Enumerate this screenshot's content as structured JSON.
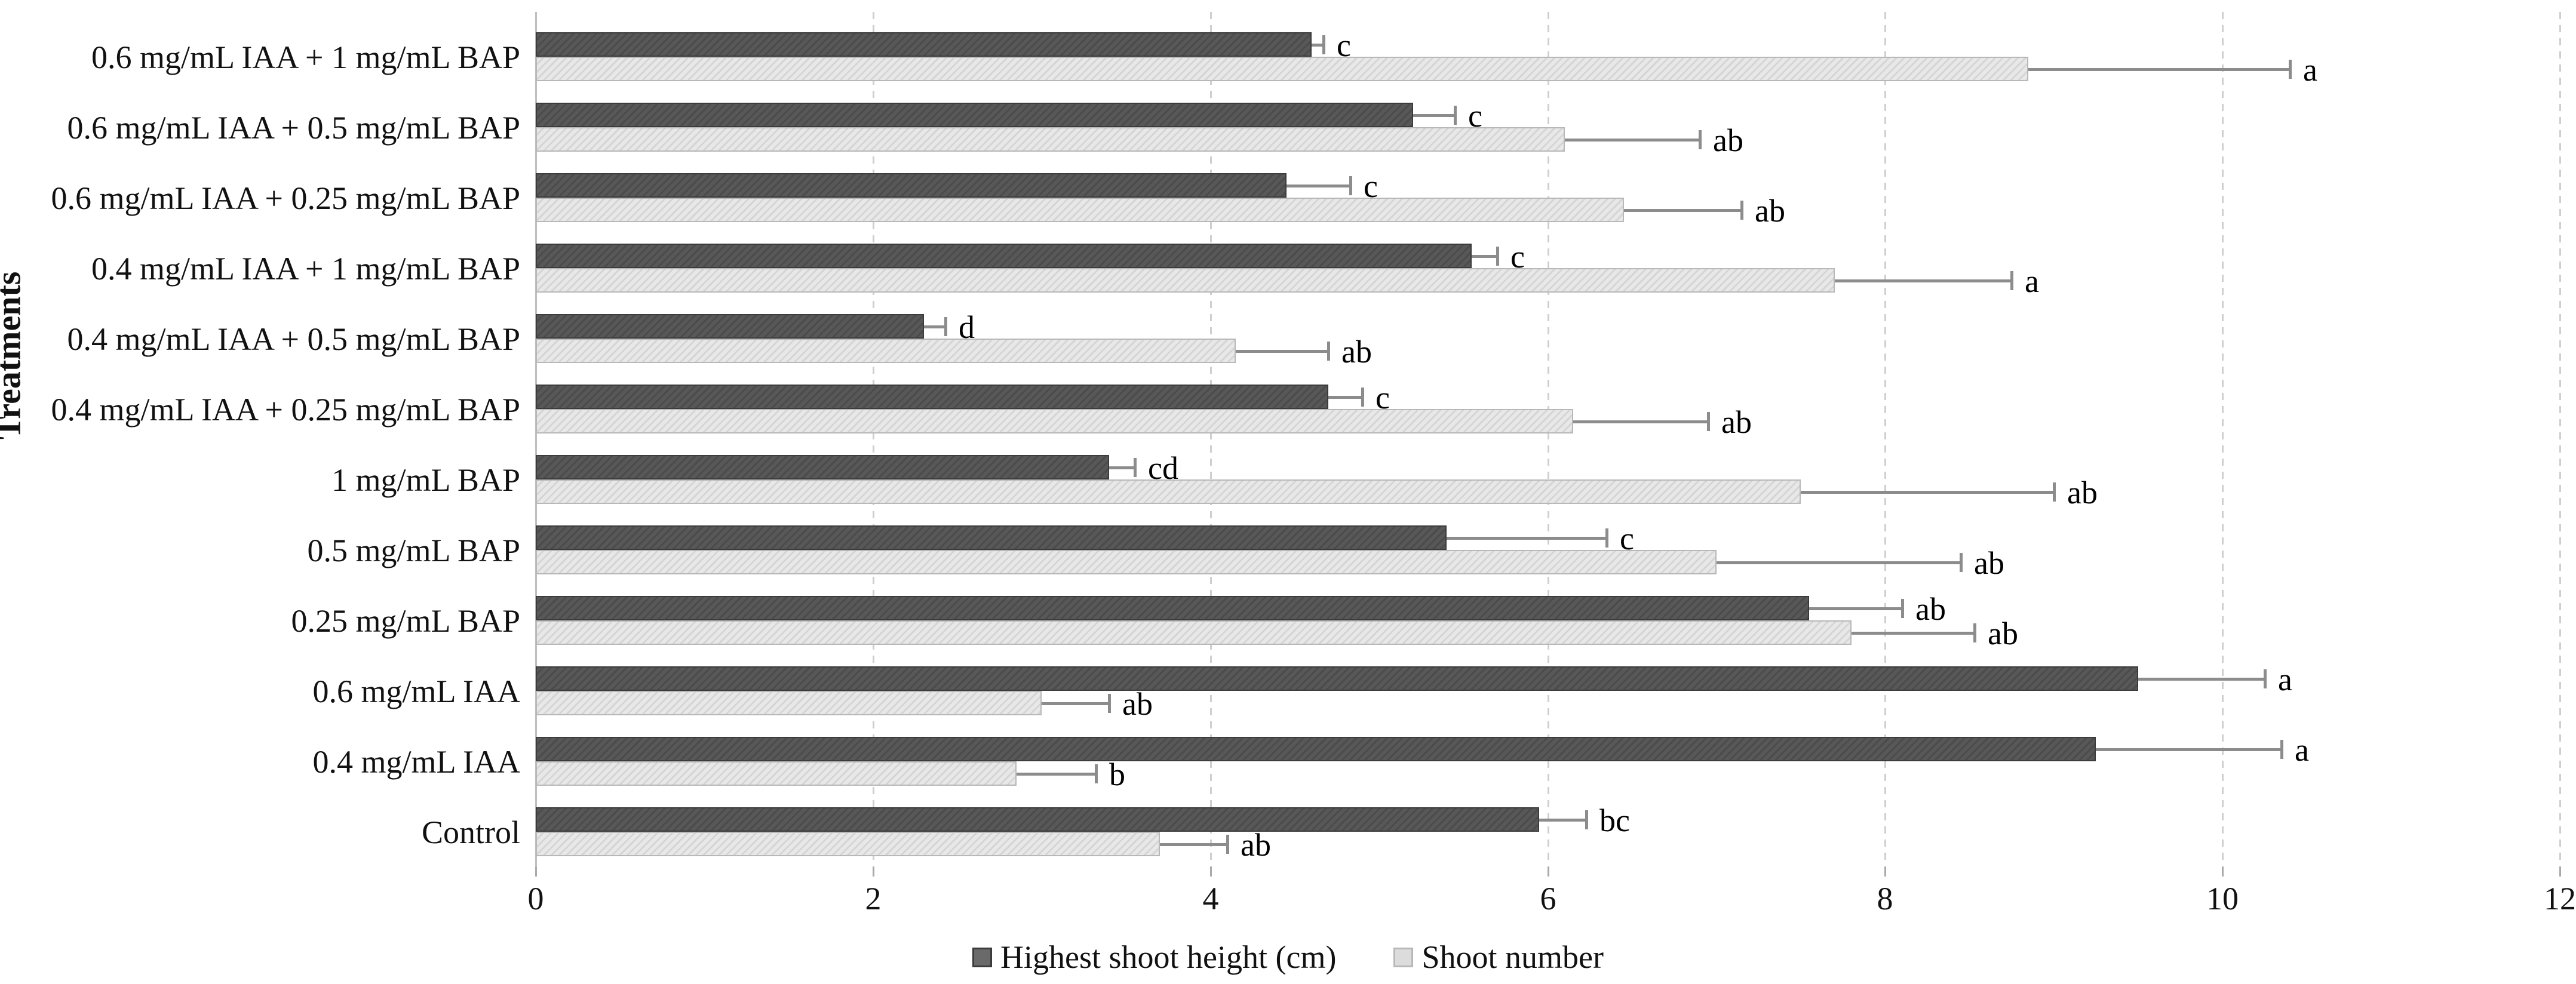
{
  "colors": {
    "dark_bar": "#4f4f4f",
    "dark_border": "#3c3c3c",
    "light_bar": "#dcdcdc",
    "light_border": "#b8b8b8",
    "error_bar": "#8c8c8c",
    "grid": "#cfcfcf",
    "axis": "#bfbfbf",
    "text": "#111111"
  },
  "legend": {
    "items": [
      {
        "label": "Highest shoot height (cm)",
        "swatch": "dark"
      },
      {
        "label": "Shoot number",
        "swatch": "light"
      }
    ]
  },
  "chart_data": {
    "type": "bar",
    "orientation": "horizontal",
    "title": "",
    "xlabel": "",
    "ylabel": "Treatments",
    "xlim": [
      0,
      12
    ],
    "x_ticks": [
      0,
      2,
      4,
      6,
      8,
      10,
      12
    ],
    "grid": true,
    "legend_position": "bottom",
    "categories": [
      "0.6 mg/mL IAA + 1 mg/mL BAP",
      "0.6 mg/mL IAA + 0.5 mg/mL BAP",
      "0.6 mg/mL IAA + 0.25 mg/mL BAP",
      "0.4 mg/mL IAA + 1 mg/mL BAP",
      "0.4 mg/mL IAA + 0.5 mg/mL BAP",
      "0.4 mg/mL IAA + 0.25 mg/mL BAP",
      "1 mg/mL BAP",
      "0.5 mg/mL BAP",
      "0.25 mg/mL BAP",
      "0.6 mg/mL IAA",
      "0.4 mg/mL IAA",
      "Control"
    ],
    "series": [
      {
        "name": "Highest shoot height (cm)",
        "style": "dark",
        "values": [
          4.6,
          5.2,
          4.45,
          5.55,
          2.3,
          4.7,
          3.4,
          5.4,
          7.55,
          9.5,
          9.25,
          5.95
        ],
        "errors_plus": [
          0.07,
          0.25,
          0.38,
          0.15,
          0.13,
          0.2,
          0.15,
          0.95,
          0.55,
          0.75,
          1.1,
          0.28
        ],
        "sig_letters": [
          "c",
          "c",
          "c",
          "c",
          "d",
          "c",
          "cd",
          "c",
          "ab",
          "a",
          "a",
          "bc"
        ]
      },
      {
        "name": "Shoot number",
        "style": "light",
        "values": [
          8.85,
          6.1,
          6.45,
          7.7,
          4.15,
          6.15,
          7.5,
          7.0,
          7.8,
          3.0,
          2.85,
          3.7
        ],
        "errors_plus": [
          1.55,
          0.8,
          0.7,
          1.05,
          0.55,
          0.8,
          1.5,
          1.45,
          0.73,
          0.4,
          0.47,
          0.4
        ],
        "sig_letters": [
          "a",
          "ab",
          "ab",
          "a",
          "ab",
          "ab",
          "ab",
          "ab",
          "ab",
          "ab",
          "b",
          "ab"
        ]
      }
    ]
  }
}
